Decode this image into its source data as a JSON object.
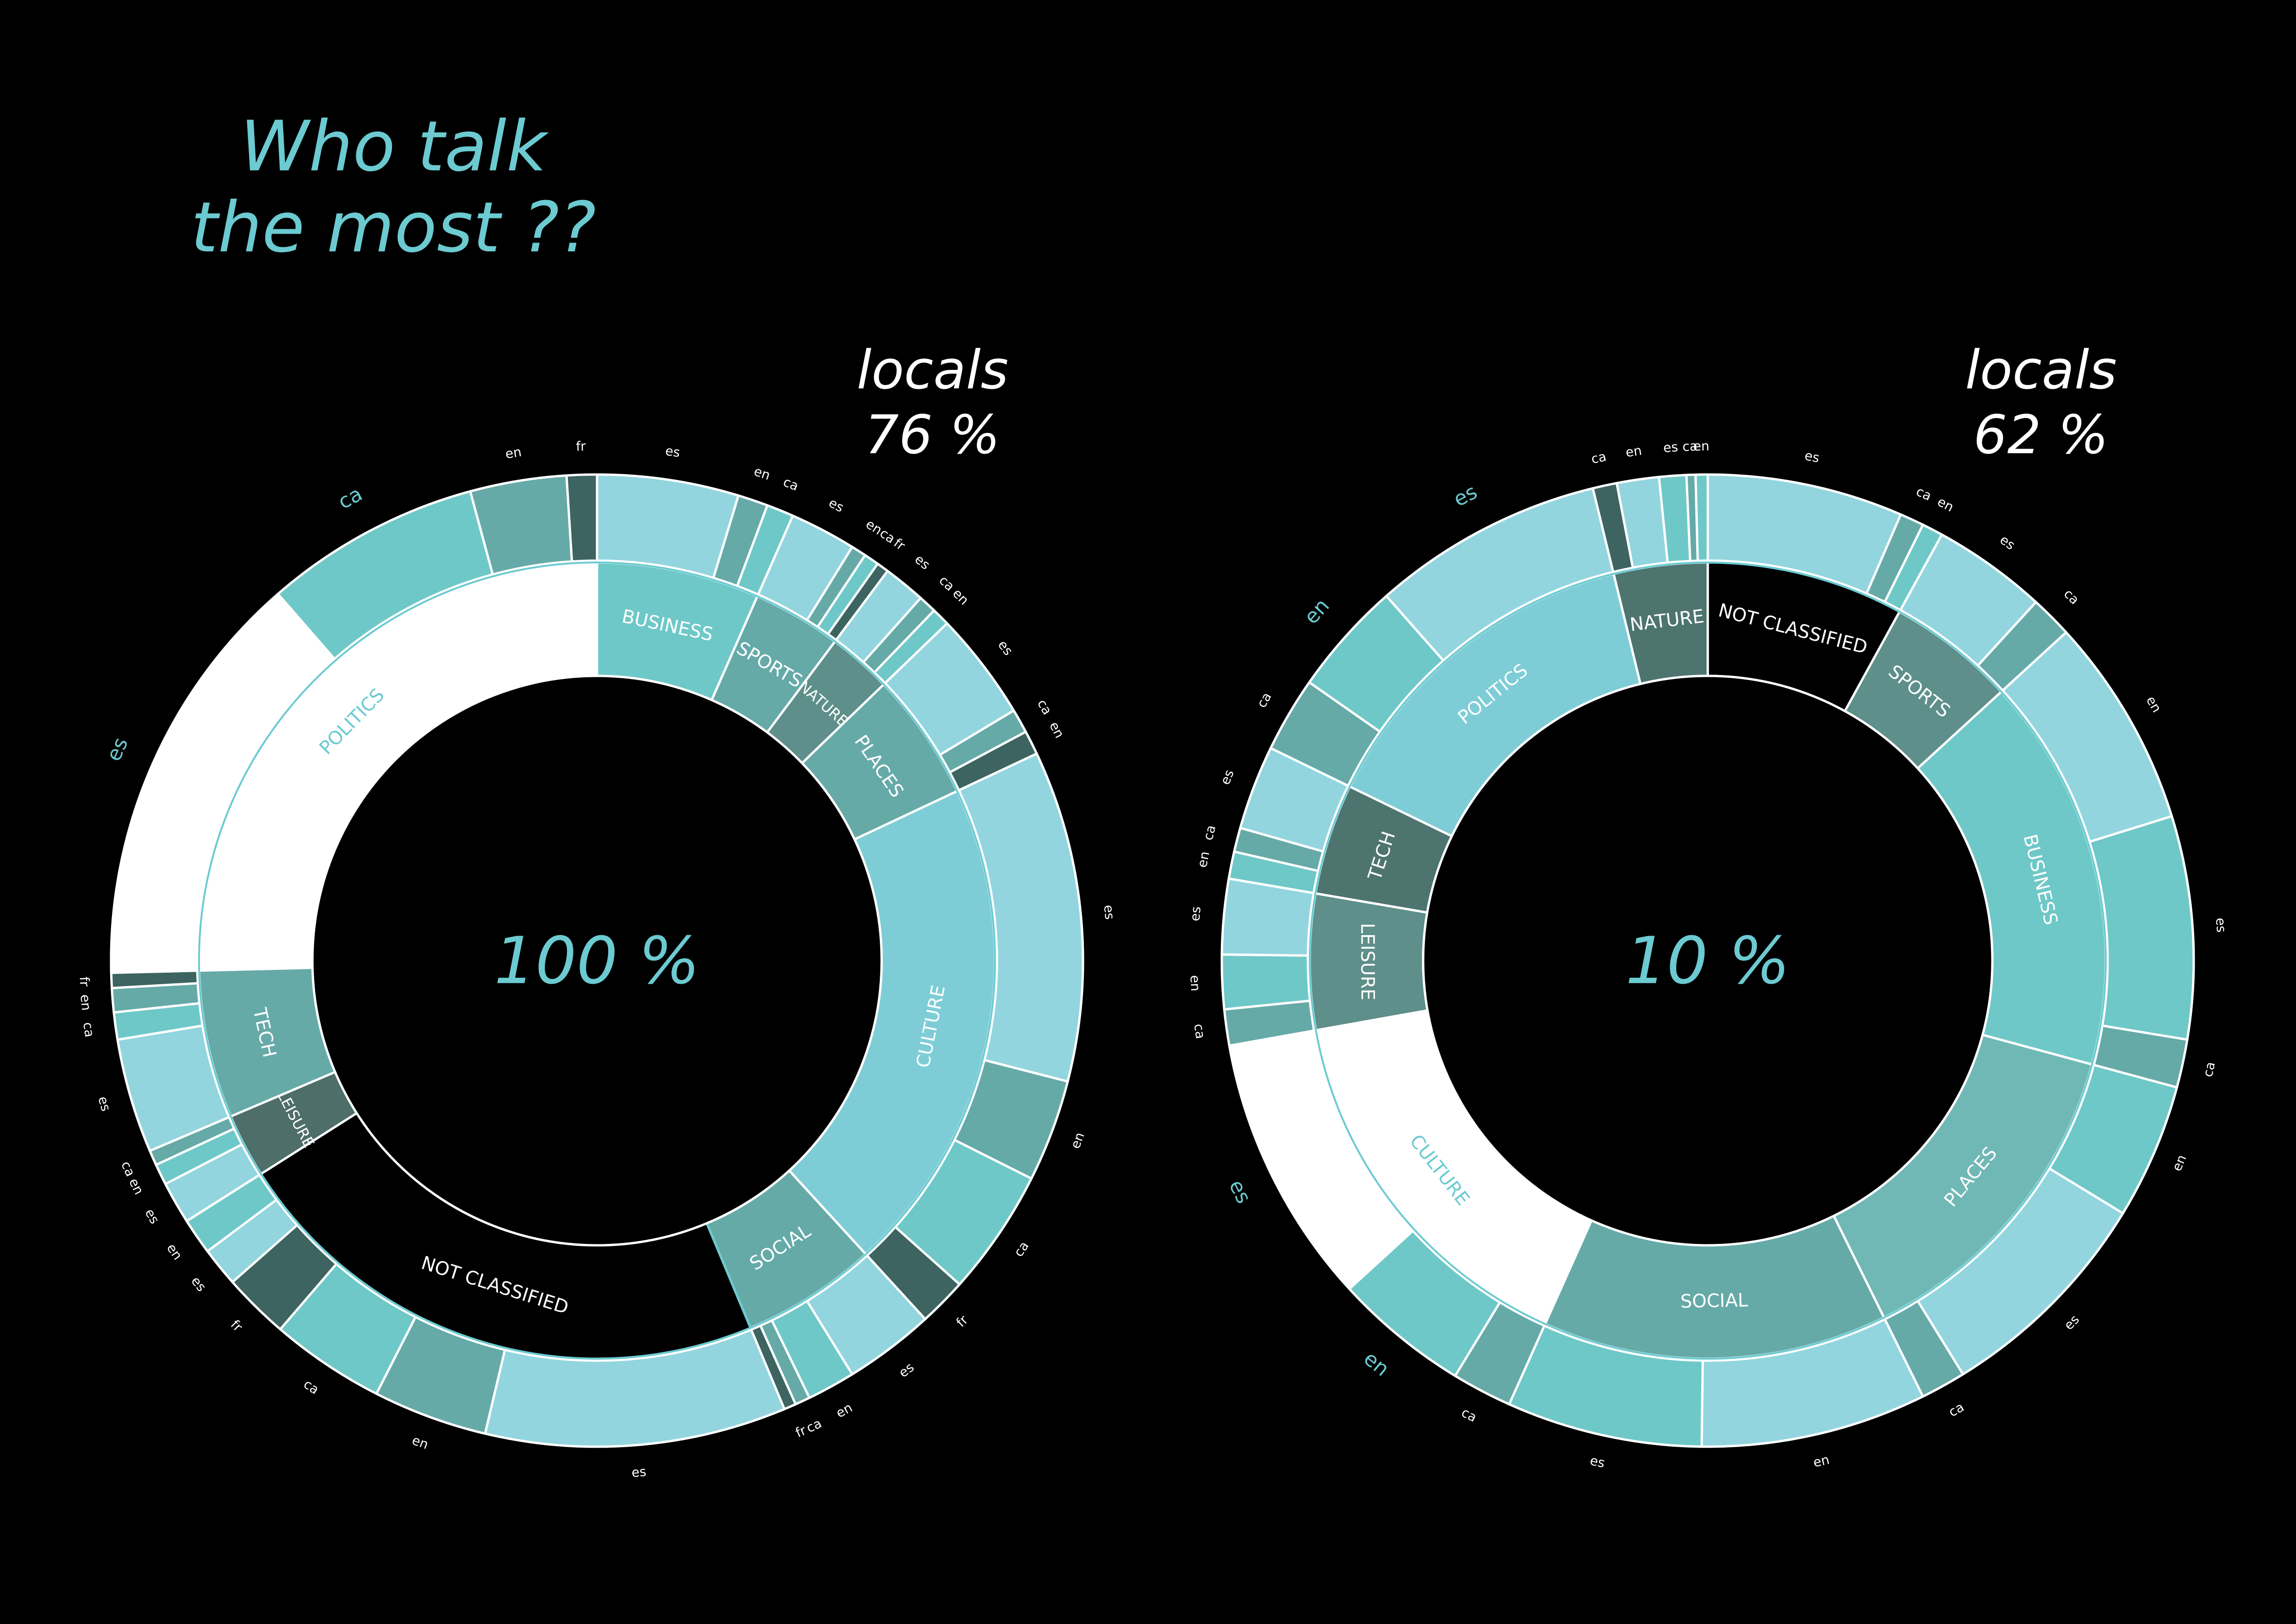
{
  "title": {
    "line1": "Who talk",
    "line2": "the most ??"
  },
  "locals_left": {
    "label": "locals",
    "value": "76 %"
  },
  "locals_right": {
    "label": "locals",
    "value": "62 %"
  },
  "colors": {
    "background": "#000000",
    "accent": "#6ccad1",
    "white": "#ffffff",
    "light": "#93d5df",
    "mid": "#6fc8c8",
    "teal": "#66aaa8",
    "dark": "#3d6460"
  },
  "chart_data": [
    {
      "type": "sunburst",
      "center_label": "100 %",
      "categories": [
        {
          "label": "BUSINESS",
          "value": 6.6,
          "color": "#6fc8c8",
          "label_color": "#ffffff",
          "langs": [
            {
              "lang": "es",
              "value": 4.7,
              "color": "#93d5df"
            },
            {
              "lang": "en",
              "value": 1.0,
              "color": "#66aaa8"
            },
            {
              "lang": "ca",
              "value": 0.9,
              "color": "#6fc8c8"
            }
          ]
        },
        {
          "label": "SPORTS",
          "value": 3.6,
          "color": "#66aaa8",
          "label_color": "#ffffff",
          "langs": [
            {
              "lang": "es",
              "value": 2.2,
              "color": "#93d5df"
            },
            {
              "lang": "en",
              "value": 0.5,
              "color": "#66aaa8"
            },
            {
              "lang": "ca",
              "value": 0.5,
              "color": "#6fc8c8"
            },
            {
              "lang": "fr",
              "value": 0.4,
              "color": "#3d6460"
            }
          ]
        },
        {
          "label": "NATURE",
          "value": 2.6,
          "color": "#5e8f8a",
          "label_color": "#ffffff",
          "langs": [
            {
              "lang": "es",
              "value": 1.4,
              "color": "#93d5df"
            },
            {
              "lang": "ca",
              "value": 0.6,
              "color": "#66aaa8"
            },
            {
              "lang": "en",
              "value": 0.6,
              "color": "#6fc8c8"
            }
          ]
        },
        {
          "label": "PLACES",
          "value": 5.2,
          "color": "#66aaa8",
          "label_color": "#ffffff",
          "langs": [
            {
              "lang": "es",
              "value": 3.6,
              "color": "#93d5df"
            },
            {
              "lang": "ca",
              "value": 0.8,
              "color": "#66aaa8"
            },
            {
              "lang": "en",
              "value": 0.8,
              "color": "#3d6460"
            }
          ]
        },
        {
          "label": "CULTURE",
          "value": 20.2,
          "color": "#7ecdd6",
          "label_color": "#ffffff",
          "langs": [
            {
              "lang": "es",
              "value": 11.0,
              "color": "#93d5df"
            },
            {
              "lang": "en",
              "value": 3.4,
              "color": "#66aaa8"
            },
            {
              "lang": "ca",
              "value": 4.2,
              "color": "#6fc8c8"
            },
            {
              "lang": "fr",
              "value": 1.6,
              "color": "#3d6460"
            }
          ]
        },
        {
          "label": "SOCIAL",
          "value": 5.5,
          "color": "#66aaa8",
          "label_color": "#ffffff",
          "langs": [
            {
              "lang": "es",
              "value": 3.0,
              "color": "#93d5df"
            },
            {
              "lang": "en",
              "value": 1.6,
              "color": "#6fc8c8"
            },
            {
              "lang": "ca",
              "value": 0.5,
              "color": "#66aaa8"
            },
            {
              "lang": "fr",
              "value": 0.4,
              "color": "#3d6460"
            }
          ]
        },
        {
          "label": "NOT CLASSIFIED",
          "value": 22.3,
          "color": "#000000",
          "label_color": "#ffffff",
          "langs": [
            {
              "lang": "es",
              "value": 10.0,
              "color": "#93d5df"
            },
            {
              "lang": "en",
              "value": 3.8,
              "color": "#66aaa8"
            },
            {
              "lang": "ca",
              "value": 3.8,
              "color": "#6fc8c8"
            },
            {
              "lang": "fr",
              "value": 2.2,
              "color": "#3d6460"
            },
            {
              "lang": "es",
              "value": 1.3,
              "color": "#93d5df"
            },
            {
              "lang": "en",
              "value": 1.2,
              "color": "#6fc8c8"
            }
          ]
        },
        {
          "label": "LEISURE",
          "value": 2.6,
          "color": "#4e6e69",
          "label_color": "#ffffff",
          "langs": [
            {
              "lang": "es",
              "value": 1.4,
              "color": "#93d5df"
            },
            {
              "lang": "en",
              "value": 0.7,
              "color": "#6fc8c8"
            },
            {
              "lang": "ca",
              "value": 0.5,
              "color": "#66aaa8"
            }
          ]
        },
        {
          "label": "TECH",
          "value": 6.0,
          "color": "#66aaa8",
          "label_color": "#ffffff",
          "langs": [
            {
              "lang": "es",
              "value": 3.8,
              "color": "#93d5df"
            },
            {
              "lang": "ca",
              "value": 0.9,
              "color": "#6fc8c8"
            },
            {
              "lang": "en",
              "value": 0.8,
              "color": "#66aaa8"
            },
            {
              "lang": "fr",
              "value": 0.5,
              "color": "#3d6460"
            }
          ]
        },
        {
          "label": "POLITICS",
          "value": 25.4,
          "color": "#ffffff",
          "label_color": "#6ccad1",
          "langs": [
            {
              "lang": "es",
              "value": 14.0,
              "color": "#ffffff",
              "label_color": "#6ccad1"
            },
            {
              "lang": "ca",
              "value": 7.2,
              "color": "#6fc8c8",
              "label_color": "#6ccad1"
            },
            {
              "lang": "en",
              "value": 3.2,
              "color": "#66aaa8"
            },
            {
              "lang": "fr",
              "value": 1.0,
              "color": "#3d6460"
            }
          ]
        }
      ]
    },
    {
      "type": "sunburst",
      "center_label": "10 %",
      "categories": [
        {
          "label": "NOT CLASSIFIED",
          "value": 8.0,
          "color": "#000000",
          "label_color": "#ffffff",
          "langs": [
            {
              "lang": "es",
              "value": 6.5,
              "color": "#93d5df"
            },
            {
              "lang": "ca",
              "value": 0.8,
              "color": "#66aaa8"
            },
            {
              "lang": "en",
              "value": 0.7,
              "color": "#6fc8c8"
            }
          ]
        },
        {
          "label": "SPORTS",
          "value": 5.2,
          "color": "#5e8f8a",
          "label_color": "#ffffff",
          "langs": [
            {
              "lang": "es",
              "value": 3.8,
              "color": "#93d5df"
            },
            {
              "lang": "ca",
              "value": 1.4,
              "color": "#66aaa8"
            }
          ]
        },
        {
          "label": "BUSINESS",
          "value": 16.0,
          "color": "#6fc8c8",
          "label_color": "#ffffff",
          "langs": [
            {
              "lang": "en",
              "value": 7.0,
              "color": "#93d5df"
            },
            {
              "lang": "es",
              "value": 7.4,
              "color": "#6fc8c8"
            },
            {
              "lang": "ca",
              "value": 1.6,
              "color": "#66aaa8"
            }
          ]
        },
        {
          "label": "PLACES",
          "value": 13.5,
          "color": "#70b8b6",
          "label_color": "#ffffff",
          "langs": [
            {
              "lang": "en",
              "value": 4.5,
              "color": "#6fc8c8"
            },
            {
              "lang": "es",
              "value": 7.5,
              "color": "#93d5df"
            },
            {
              "lang": "ca",
              "value": 1.5,
              "color": "#66aaa8"
            }
          ]
        },
        {
          "label": "SOCIAL",
          "value": 14.0,
          "color": "#66aaa8",
          "label_color": "#ffffff",
          "langs": [
            {
              "lang": "en",
              "value": 7.5,
              "color": "#93d5df"
            },
            {
              "lang": "es",
              "value": 6.5,
              "color": "#6fc8c8"
            }
          ]
        },
        {
          "label": "CULTURE",
          "value": 15.5,
          "color": "#ffffff",
          "label_color": "#6ccad1",
          "langs": [
            {
              "lang": "ca",
              "value": 2.0,
              "color": "#66aaa8"
            },
            {
              "lang": "en",
              "value": 4.5,
              "color": "#6fc8c8",
              "label_color": "#6ccad1"
            },
            {
              "lang": "es",
              "value": 9.0,
              "color": "#ffffff",
              "label_color": "#6ccad1"
            }
          ]
        },
        {
          "label": "LEISURE",
          "value": 5.5,
          "color": "#5e8f8a",
          "label_color": "#ffffff",
          "langs": [
            {
              "lang": "ca",
              "value": 1.2,
              "color": "#66aaa8"
            },
            {
              "lang": "en",
              "value": 1.8,
              "color": "#6fc8c8"
            },
            {
              "lang": "es",
              "value": 2.5,
              "color": "#93d5df"
            }
          ]
        },
        {
          "label": "TECH",
          "value": 4.5,
          "color": "#4e7470",
          "label_color": "#ffffff",
          "langs": [
            {
              "lang": "en",
              "value": 0.9,
              "color": "#6fc8c8"
            },
            {
              "lang": "ca",
              "value": 0.8,
              "color": "#66aaa8"
            },
            {
              "lang": "es",
              "value": 2.8,
              "color": "#93d5df"
            }
          ]
        },
        {
          "label": "POLITICS",
          "value": 14.0,
          "color": "#7ecdd6",
          "label_color": "#ffffff",
          "langs": [
            {
              "lang": "ca",
              "value": 2.5,
              "color": "#66aaa8"
            },
            {
              "lang": "en",
              "value": 3.8,
              "color": "#6fc8c8",
              "label_color": "#6ccad1"
            },
            {
              "lang": "es",
              "value": 7.7,
              "color": "#93d5df",
              "label_color": "#6ccad1"
            }
          ]
        },
        {
          "label": "NATURE",
          "value": 3.8,
          "color": "#4e7470",
          "label_color": "#ffffff",
          "langs": [
            {
              "lang": "ca",
              "value": 0.8,
              "color": "#3d6460"
            },
            {
              "lang": "en",
              "value": 1.4,
              "color": "#93d5df"
            },
            {
              "lang": "es",
              "value": 0.9,
              "color": "#6fc8c8"
            },
            {
              "lang": "ca",
              "value": 0.3,
              "color": "#66aaa8"
            },
            {
              "lang": "en",
              "value": 0.4,
              "color": "#6fc8c8"
            }
          ]
        }
      ]
    }
  ]
}
